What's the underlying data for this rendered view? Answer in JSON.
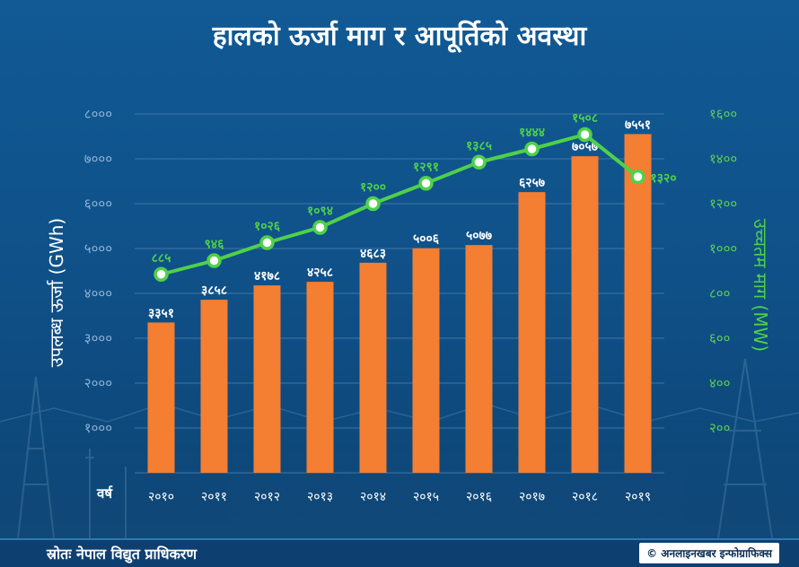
{
  "title": "हालको ऊर्जा माग र आपूर्तिको अवस्था",
  "footer": {
    "source": "स्रोतः नेपाल विद्युत प्राधिकरण",
    "credit": "© अनलाइनखबर इन्फोग्राफिक्स"
  },
  "colors": {
    "bar": "#f47e32",
    "line": "#4ed14a",
    "left_axis_ticks": "#8cb3d8",
    "right_axis_ticks": "#5ecf52",
    "grid": "#3f76a6"
  },
  "chart_data": {
    "type": "bar",
    "xlabel": "वर्ष",
    "ylabel": "उपलब्ध ऊर्जा (GWh)",
    "y2label": "उच्चतम माग (MW)",
    "ylim": [
      0,
      8000
    ],
    "y2lim": [
      0,
      1600
    ],
    "y_ticks": [
      "१०००",
      "२०००",
      "३०००",
      "४०००",
      "५०००",
      "६०००",
      "७०००",
      "८०००"
    ],
    "y2_ticks": [
      "२००",
      "४००",
      "६००",
      "८००",
      "१०००",
      "१२००",
      "१४००",
      "१६००"
    ],
    "categories": [
      "२०१०",
      "२०११",
      "२०१२",
      "२०१३",
      "२०१४",
      "२०१५",
      "२०१६",
      "२०१७",
      "२०१८",
      "२०१९"
    ],
    "series": [
      {
        "name": "उपलब्ध ऊर्जा (GWh)",
        "type": "bar",
        "axis": "left",
        "values": [
          3351,
          3858,
          4178,
          4258,
          4683,
          5006,
          5077,
          6257,
          7057,
          7551
        ],
        "labels": [
          "३३५१",
          "३८५८",
          "४१७८",
          "४२५८",
          "४६८३",
          "५००६",
          "५०७७",
          "६२५७",
          "७०५७",
          "७५५१"
        ]
      },
      {
        "name": "उच्चतम माग (MW)",
        "type": "line",
        "axis": "right",
        "values": [
          885,
          946,
          1026,
          1094,
          1200,
          1291,
          1385,
          1444,
          1508,
          1320
        ],
        "labels": [
          "८८५",
          "९४६",
          "१०२६",
          "१०९४",
          "१२००",
          "१२९१",
          "१३८५",
          "१४४४",
          "१५०८",
          "१३२०"
        ]
      }
    ]
  }
}
